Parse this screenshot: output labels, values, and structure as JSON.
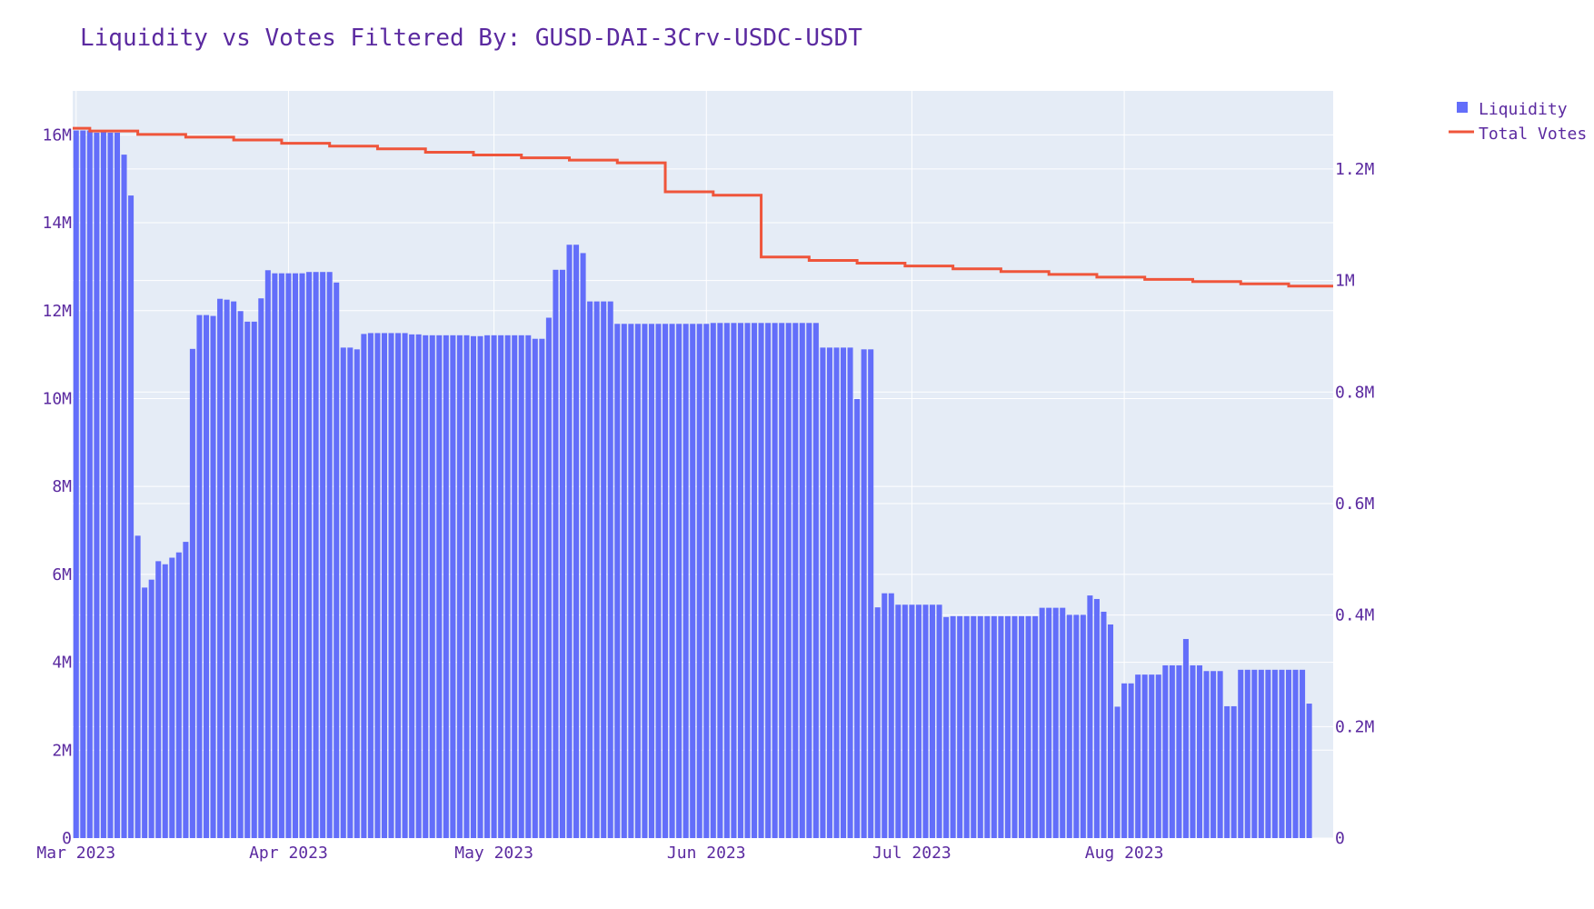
{
  "chart_data": {
    "type": "bar+line",
    "title": "Liquidity vs Votes Filtered By: GUSD-DAI-3Crv-USDC-USDT",
    "xlabel": "",
    "ylabel": "",
    "y2label": "",
    "x_range": [
      "2023-03-01",
      "2023-08-31"
    ],
    "x_ticks": [
      {
        "date": "2023-03-01",
        "label": "Mar 2023"
      },
      {
        "date": "2023-04-01",
        "label": "Apr 2023"
      },
      {
        "date": "2023-05-01",
        "label": "May 2023"
      },
      {
        "date": "2023-06-01",
        "label": "Jun 2023"
      },
      {
        "date": "2023-07-01",
        "label": "Jul 2023"
      },
      {
        "date": "2023-08-01",
        "label": "Aug 2023"
      }
    ],
    "ylim": [
      0,
      17000000
    ],
    "y_ticks": [
      {
        "value": 0,
        "label": "0"
      },
      {
        "value": 2000000,
        "label": "2M"
      },
      {
        "value": 4000000,
        "label": "4M"
      },
      {
        "value": 6000000,
        "label": "6M"
      },
      {
        "value": 8000000,
        "label": "8M"
      },
      {
        "value": 10000000,
        "label": "10M"
      },
      {
        "value": 12000000,
        "label": "12M"
      },
      {
        "value": 14000000,
        "label": "14M"
      },
      {
        "value": 16000000,
        "label": "16M"
      }
    ],
    "y2lim": [
      0,
      1340000
    ],
    "y2_ticks": [
      {
        "value": 0,
        "label": "0"
      },
      {
        "value": 200000,
        "label": "0.2M"
      },
      {
        "value": 400000,
        "label": "0.4M"
      },
      {
        "value": 600000,
        "label": "0.6M"
      },
      {
        "value": 800000,
        "label": "0.8M"
      },
      {
        "value": 1000000,
        "label": "1M"
      },
      {
        "value": 1200000,
        "label": "1.2M"
      }
    ],
    "grid": true,
    "legend_position": "top-right",
    "series": [
      {
        "name": "Liquidity",
        "type": "bar",
        "axis": "y",
        "color": "#636efa",
        "start_date": "2023-03-01",
        "values": [
          16100000,
          16100000,
          16100000,
          16050000,
          16100000,
          16050000,
          16050000,
          15550000,
          14620000,
          6880000,
          5700000,
          5880000,
          6300000,
          6230000,
          6380000,
          6500000,
          6740000,
          11130000,
          11900000,
          11900000,
          11880000,
          12270000,
          12250000,
          12210000,
          11990000,
          11750000,
          11750000,
          12280000,
          12920000,
          12850000,
          12850000,
          12850000,
          12850000,
          12850000,
          12880000,
          12880000,
          12880000,
          12880000,
          12640000,
          11160000,
          11160000,
          11120000,
          11470000,
          11490000,
          11490000,
          11490000,
          11490000,
          11490000,
          11490000,
          11460000,
          11460000,
          11440000,
          11440000,
          11440000,
          11440000,
          11440000,
          11440000,
          11440000,
          11420000,
          11420000,
          11440000,
          11440000,
          11440000,
          11440000,
          11440000,
          11440000,
          11440000,
          11360000,
          11360000,
          11840000,
          12930000,
          12930000,
          13500000,
          13500000,
          13310000,
          12210000,
          12210000,
          12210000,
          12210000,
          11700000,
          11700000,
          11700000,
          11700000,
          11700000,
          11700000,
          11700000,
          11700000,
          11700000,
          11700000,
          11700000,
          11700000,
          11700000,
          11700000,
          11720000,
          11720000,
          11720000,
          11720000,
          11720000,
          11720000,
          11720000,
          11720000,
          11720000,
          11720000,
          11720000,
          11720000,
          11720000,
          11720000,
          11720000,
          11720000,
          11160000,
          11160000,
          11160000,
          11160000,
          11160000,
          9990000,
          11120000,
          11120000,
          5250000,
          5570000,
          5570000,
          5310000,
          5310000,
          5310000,
          5310000,
          5310000,
          5310000,
          5310000,
          5030000,
          5050000,
          5050000,
          5050000,
          5050000,
          5050000,
          5050000,
          5050000,
          5050000,
          5050000,
          5050000,
          5050000,
          5050000,
          5050000,
          5240000,
          5240000,
          5240000,
          5240000,
          5080000,
          5080000,
          5080000,
          5520000,
          5440000,
          5150000,
          4860000,
          2990000,
          3520000,
          3520000,
          3720000,
          3720000,
          3720000,
          3720000,
          3930000,
          3930000,
          3930000,
          4530000,
          3930000,
          3930000,
          3800000,
          3800000,
          3800000,
          3000000,
          3000000,
          3830000,
          3830000,
          3830000,
          3830000,
          3830000,
          3830000,
          3830000,
          3830000,
          3830000,
          3830000,
          3060000
        ]
      },
      {
        "name": "Total Votes",
        "type": "line",
        "shape": "hv",
        "axis": "y2",
        "color": "#ef553b",
        "points": [
          {
            "x": "2023-03-01",
            "y": 1273000
          },
          {
            "x": "2023-03-03",
            "y": 1268000
          },
          {
            "x": "2023-03-10",
            "y": 1262000
          },
          {
            "x": "2023-03-17",
            "y": 1257000
          },
          {
            "x": "2023-03-24",
            "y": 1252000
          },
          {
            "x": "2023-03-31",
            "y": 1246000
          },
          {
            "x": "2023-04-07",
            "y": 1241000
          },
          {
            "x": "2023-04-14",
            "y": 1236000
          },
          {
            "x": "2023-04-21",
            "y": 1230000
          },
          {
            "x": "2023-04-28",
            "y": 1225000
          },
          {
            "x": "2023-05-05",
            "y": 1220000
          },
          {
            "x": "2023-05-12",
            "y": 1216000
          },
          {
            "x": "2023-05-19",
            "y": 1211000
          },
          {
            "x": "2023-05-26",
            "y": 1159000
          },
          {
            "x": "2023-06-02",
            "y": 1153000
          },
          {
            "x": "2023-06-09",
            "y": 1042000
          },
          {
            "x": "2023-06-16",
            "y": 1036000
          },
          {
            "x": "2023-06-23",
            "y": 1031000
          },
          {
            "x": "2023-06-30",
            "y": 1026000
          },
          {
            "x": "2023-07-07",
            "y": 1021000
          },
          {
            "x": "2023-07-14",
            "y": 1016000
          },
          {
            "x": "2023-07-21",
            "y": 1011000
          },
          {
            "x": "2023-07-28",
            "y": 1006000
          },
          {
            "x": "2023-08-04",
            "y": 1002000
          },
          {
            "x": "2023-08-11",
            "y": 998000
          },
          {
            "x": "2023-08-18",
            "y": 994000
          },
          {
            "x": "2023-08-25",
            "y": 990000
          },
          {
            "x": "2023-08-31",
            "y": 990000
          }
        ]
      }
    ]
  }
}
